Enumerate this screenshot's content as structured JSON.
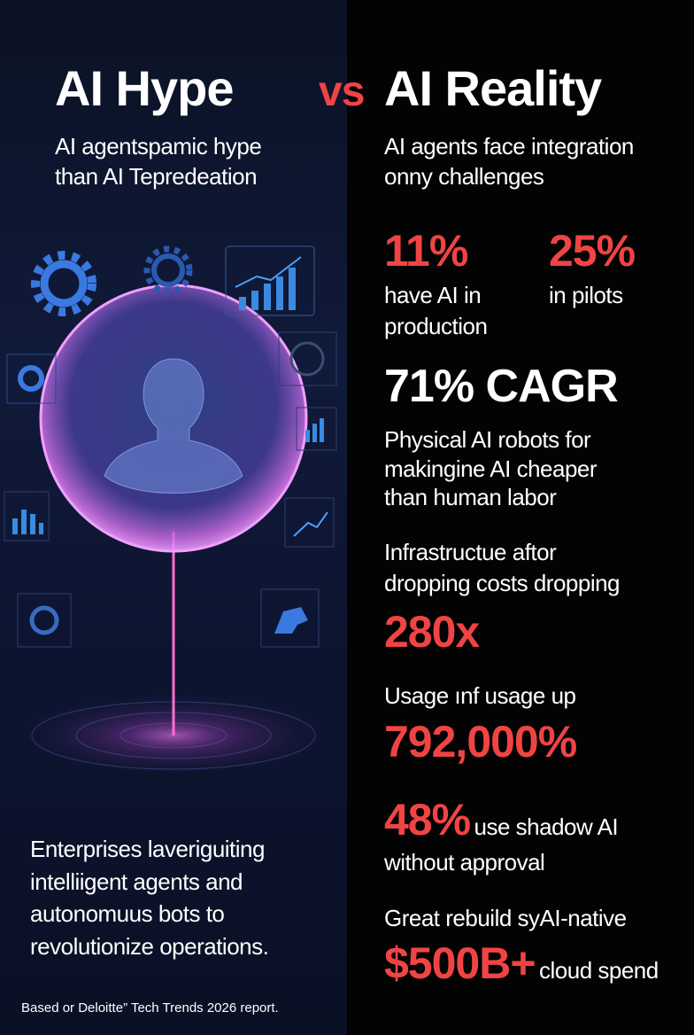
{
  "title": {
    "hype": "AI Hype",
    "vs": "vs",
    "reality": "AI Reality"
  },
  "hype": {
    "subtitle": [
      "AI agentspamic hype",
      "than AI Tepredeation"
    ],
    "body": [
      "Enterprises laveriguiting",
      "intelliigent agents and",
      "autonomuus bots to",
      "revolutionize operations."
    ],
    "footnote": "Based or Deloitte” Tech Trends 2026 report."
  },
  "reality": {
    "subtitle": [
      "AI agents face integration",
      "onny challenges"
    ],
    "stat1": {
      "value": "11%",
      "label": [
        "have AI in",
        "production"
      ]
    },
    "stat2": {
      "value": "25%",
      "label": [
        "in pilots"
      ]
    },
    "cagr": {
      "value": "71% CAGR",
      "label": [
        "Physical AI robots for",
        "makingine AI cheaper",
        "than human labor"
      ]
    },
    "infra": {
      "label": [
        "Infrastructue aftor",
        "dropping costs  dropping"
      ],
      "value": "280x"
    },
    "usage": {
      "label": "Usage ınf usage up",
      "value": "792,000%"
    },
    "shadow": {
      "value": "48%",
      "label": "use shadow AI",
      "label2": "without approval"
    },
    "rebuild": {
      "label": "Great rebuild syAI-native",
      "value": "$500B+",
      "suffix": "cloud spend"
    }
  },
  "colors": {
    "accent": "#f04444",
    "left_bg": "#101a3a",
    "right_bg": "#030303",
    "glow": "#e070e0"
  },
  "icons": [
    "gear-icon",
    "bar-chart-icon",
    "trend-chart-icon",
    "human-head-icon",
    "brain-icon",
    "robot-arm-icon"
  ]
}
